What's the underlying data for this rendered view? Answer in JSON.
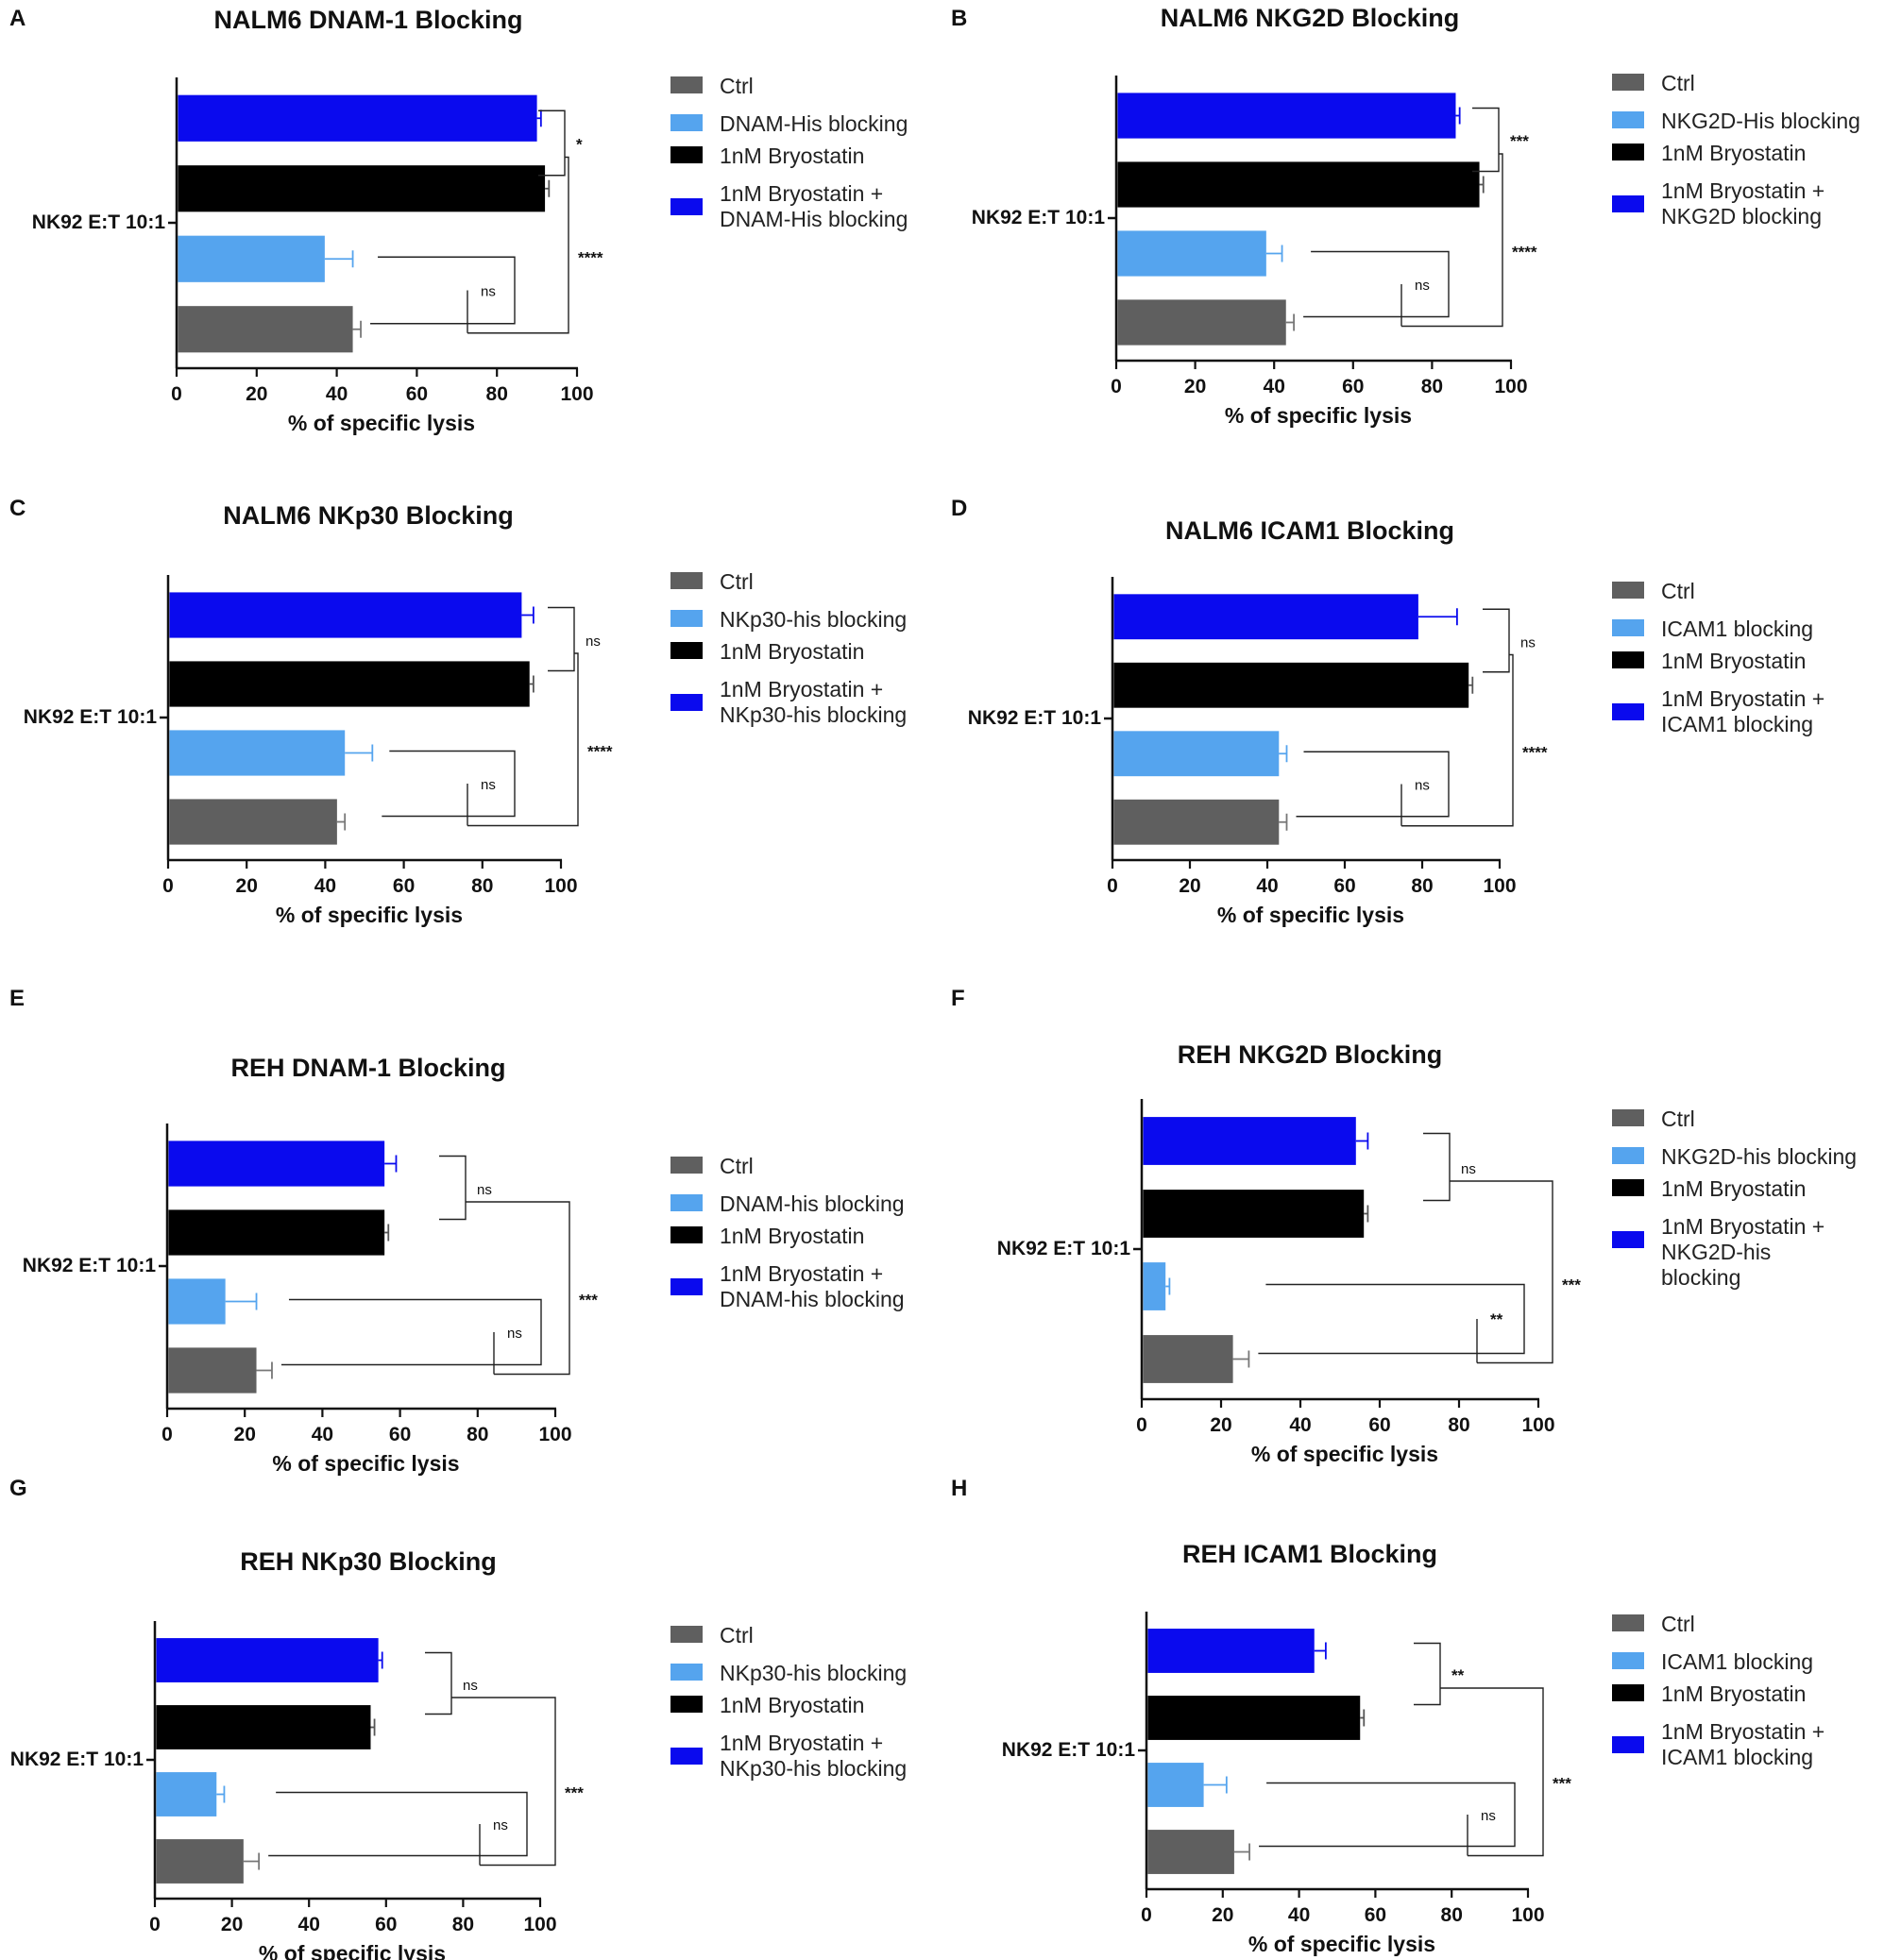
{
  "figure": {
    "colors": {
      "ctrl": "#5f5f5f",
      "blocking": "#55a4ee",
      "bryostatin": "#000000",
      "combo": "#0a0aee",
      "axis": "#111111"
    },
    "legend_colors": [
      "#5f5f5f",
      "#55a4ee",
      "#000000",
      "#0a0aee"
    ]
  },
  "chart_data": [
    {
      "panel": "A",
      "type": "bar",
      "orientation": "horizontal",
      "title": "NALM6 DNAM-1 Blocking",
      "row_label": "NK92 E:T 10:1",
      "xlabel": "% of specific lysis",
      "xlim": [
        0,
        100
      ],
      "xticks": [
        "0",
        "20",
        "40",
        "60",
        "80",
        "100"
      ],
      "legend": [
        "Ctrl",
        "DNAM-His blocking",
        "1nM Bryostatin",
        "1nM Bryostatin +\nDNAM-His blocking"
      ],
      "series": [
        {
          "name": "1nM Bryostatin + DNAM-His blocking",
          "value": 90,
          "error": 1
        },
        {
          "name": "1nM Bryostatin",
          "value": 92,
          "error": 1
        },
        {
          "name": "DNAM-His blocking",
          "value": 37,
          "error": 7
        },
        {
          "name": "Ctrl",
          "value": 44,
          "error": 2
        }
      ],
      "significance": [
        {
          "between": [
            "1nM Bryostatin + DNAM-His blocking",
            "1nM Bryostatin"
          ],
          "label": "*"
        },
        {
          "between": [
            "DNAM-His blocking",
            "Ctrl"
          ],
          "label": "ns"
        },
        {
          "between": [
            "1nM Bryostatin",
            "Ctrl"
          ],
          "label": "****"
        }
      ]
    },
    {
      "panel": "B",
      "type": "bar",
      "orientation": "horizontal",
      "title": "NALM6 NKG2D Blocking",
      "row_label": "NK92 E:T 10:1",
      "xlabel": "% of specific lysis",
      "xlim": [
        0,
        100
      ],
      "xticks": [
        "0",
        "20",
        "40",
        "60",
        "80",
        "100"
      ],
      "legend": [
        "Ctrl",
        "NKG2D-His blocking",
        "1nM Bryostatin",
        "1nM Bryostatin +\nNKG2D blocking"
      ],
      "series": [
        {
          "name": "1nM Bryostatin + NKG2D blocking",
          "value": 86,
          "error": 1
        },
        {
          "name": "1nM Bryostatin",
          "value": 92,
          "error": 1
        },
        {
          "name": "NKG2D-His blocking",
          "value": 38,
          "error": 4
        },
        {
          "name": "Ctrl",
          "value": 43,
          "error": 2
        }
      ],
      "significance": [
        {
          "between": [
            "1nM Bryostatin + NKG2D blocking",
            "1nM Bryostatin"
          ],
          "label": "***"
        },
        {
          "between": [
            "NKG2D-His blocking",
            "Ctrl"
          ],
          "label": "ns"
        },
        {
          "between": [
            "1nM Bryostatin",
            "Ctrl"
          ],
          "label": "****"
        }
      ]
    },
    {
      "panel": "C",
      "type": "bar",
      "orientation": "horizontal",
      "title": "NALM6 NKp30 Blocking",
      "row_label": "NK92 E:T 10:1",
      "xlabel": "% of specific lysis",
      "xlim": [
        0,
        100
      ],
      "xticks": [
        "0",
        "20",
        "40",
        "60",
        "80",
        "100"
      ],
      "legend": [
        "Ctrl",
        "NKp30-his blocking",
        "1nM Bryostatin",
        "1nM Bryostatin +\nNKp30-his blocking"
      ],
      "series": [
        {
          "name": "1nM Bryostatin + NKp30-his blocking",
          "value": 90,
          "error": 3
        },
        {
          "name": "1nM Bryostatin",
          "value": 92,
          "error": 1
        },
        {
          "name": "NKp30-his blocking",
          "value": 45,
          "error": 7
        },
        {
          "name": "Ctrl",
          "value": 43,
          "error": 2
        }
      ],
      "significance": [
        {
          "between": [
            "1nM Bryostatin + NKp30-his blocking",
            "1nM Bryostatin"
          ],
          "label": "ns"
        },
        {
          "between": [
            "NKp30-his blocking",
            "Ctrl"
          ],
          "label": "ns"
        },
        {
          "between": [
            "1nM Bryostatin",
            "Ctrl"
          ],
          "label": "****"
        }
      ]
    },
    {
      "panel": "D",
      "type": "bar",
      "orientation": "horizontal",
      "title": "NALM6 ICAM1 Blocking",
      "row_label": "NK92 E:T 10:1",
      "xlabel": "% of specific lysis",
      "xlim": [
        0,
        100
      ],
      "xticks": [
        "0",
        "20",
        "40",
        "60",
        "80",
        "100"
      ],
      "legend": [
        "Ctrl",
        "ICAM1 blocking",
        "1nM Bryostatin",
        "1nM Bryostatin +\nICAM1 blocking"
      ],
      "series": [
        {
          "name": "1nM Bryostatin + ICAM1 blocking",
          "value": 79,
          "error": 10
        },
        {
          "name": "1nM Bryostatin",
          "value": 92,
          "error": 1
        },
        {
          "name": "ICAM1 blocking",
          "value": 43,
          "error": 2
        },
        {
          "name": "Ctrl",
          "value": 43,
          "error": 2
        }
      ],
      "significance": [
        {
          "between": [
            "1nM Bryostatin + ICAM1 blocking",
            "1nM Bryostatin"
          ],
          "label": "ns"
        },
        {
          "between": [
            "ICAM1 blocking",
            "Ctrl"
          ],
          "label": "ns"
        },
        {
          "between": [
            "1nM Bryostatin",
            "Ctrl"
          ],
          "label": "****"
        }
      ]
    },
    {
      "panel": "E",
      "type": "bar",
      "orientation": "horizontal",
      "title": "REH DNAM-1 Blocking",
      "row_label": "NK92 E:T 10:1",
      "xlabel": "% of specific lysis",
      "xlim": [
        0,
        100
      ],
      "xticks": [
        "0",
        "20",
        "40",
        "60",
        "80",
        "100"
      ],
      "legend": [
        "Ctrl",
        "DNAM-his blocking",
        "1nM Bryostatin",
        "1nM Bryostatin +\nDNAM-his blocking"
      ],
      "series": [
        {
          "name": "1nM Bryostatin + DNAM-his blocking",
          "value": 56,
          "error": 3
        },
        {
          "name": "1nM Bryostatin",
          "value": 56,
          "error": 1
        },
        {
          "name": "DNAM-his blocking",
          "value": 15,
          "error": 8
        },
        {
          "name": "Ctrl",
          "value": 23,
          "error": 4
        }
      ],
      "significance": [
        {
          "between": [
            "1nM Bryostatin + DNAM-his blocking",
            "1nM Bryostatin"
          ],
          "label": "ns"
        },
        {
          "between": [
            "DNAM-his blocking",
            "Ctrl"
          ],
          "label": "ns"
        },
        {
          "between": [
            "1nM Bryostatin",
            "Ctrl"
          ],
          "label": "***"
        }
      ]
    },
    {
      "panel": "F",
      "type": "bar",
      "orientation": "horizontal",
      "title": "REH NKG2D Blocking",
      "row_label": "NK92 E:T 10:1",
      "xlabel": "% of specific lysis",
      "xlim": [
        0,
        100
      ],
      "xticks": [
        "0",
        "20",
        "40",
        "60",
        "80",
        "100"
      ],
      "legend": [
        "Ctrl",
        "NKG2D-his blocking",
        "1nM Bryostatin",
        "1nM Bryostatin +\nNKG2D-his\nblocking"
      ],
      "series": [
        {
          "name": "1nM Bryostatin + NKG2D-his blocking",
          "value": 54,
          "error": 3
        },
        {
          "name": "1nM Bryostatin",
          "value": 56,
          "error": 1
        },
        {
          "name": "NKG2D-his blocking",
          "value": 6,
          "error": 1
        },
        {
          "name": "Ctrl",
          "value": 23,
          "error": 4
        }
      ],
      "significance": [
        {
          "between": [
            "1nM Bryostatin + NKG2D-his blocking",
            "1nM Bryostatin"
          ],
          "label": "ns"
        },
        {
          "between": [
            "NKG2D-his blocking",
            "Ctrl"
          ],
          "label": "**"
        },
        {
          "between": [
            "1nM Bryostatin",
            "Ctrl"
          ],
          "label": "***"
        }
      ]
    },
    {
      "panel": "G",
      "type": "bar",
      "orientation": "horizontal",
      "title": "REH NKp30 Blocking",
      "row_label": "NK92 E:T 10:1",
      "xlabel": "% of specific lysis",
      "xlim": [
        0,
        100
      ],
      "xticks": [
        "0",
        "20",
        "40",
        "60",
        "80",
        "100"
      ],
      "legend": [
        "Ctrl",
        "NKp30-his blocking",
        "1nM Bryostatin",
        "1nM Bryostatin +\nNKp30-his blocking"
      ],
      "series": [
        {
          "name": "1nM Bryostatin + NKp30-his blocking",
          "value": 58,
          "error": 1
        },
        {
          "name": "1nM Bryostatin",
          "value": 56,
          "error": 1
        },
        {
          "name": "NKp30-his blocking",
          "value": 16,
          "error": 2
        },
        {
          "name": "Ctrl",
          "value": 23,
          "error": 4
        }
      ],
      "significance": [
        {
          "between": [
            "1nM Bryostatin + NKp30-his blocking",
            "1nM Bryostatin"
          ],
          "label": "ns"
        },
        {
          "between": [
            "NKp30-his blocking",
            "Ctrl"
          ],
          "label": "ns"
        },
        {
          "between": [
            "1nM Bryostatin",
            "Ctrl"
          ],
          "label": "***"
        }
      ]
    },
    {
      "panel": "H",
      "type": "bar",
      "orientation": "horizontal",
      "title": "REH ICAM1 Blocking",
      "row_label": "NK92 E:T 10:1",
      "xlabel": "% of specific lysis",
      "xlim": [
        0,
        100
      ],
      "xticks": [
        "0",
        "20",
        "40",
        "60",
        "80",
        "100"
      ],
      "legend": [
        "Ctrl",
        "ICAM1 blocking",
        "1nM Bryostatin",
        "1nM Bryostatin +\nICAM1 blocking"
      ],
      "series": [
        {
          "name": "1nM Bryostatin + ICAM1 blocking",
          "value": 44,
          "error": 3
        },
        {
          "name": "1nM Bryostatin",
          "value": 56,
          "error": 1
        },
        {
          "name": "ICAM1 blocking",
          "value": 15,
          "error": 6
        },
        {
          "name": "Ctrl",
          "value": 23,
          "error": 4
        }
      ],
      "significance": [
        {
          "between": [
            "1nM Bryostatin + ICAM1 blocking",
            "1nM Bryostatin"
          ],
          "label": "**"
        },
        {
          "between": [
            "ICAM1 blocking",
            "Ctrl"
          ],
          "label": "ns"
        },
        {
          "between": [
            "1nM Bryostatin",
            "Ctrl"
          ],
          "label": "***"
        }
      ]
    }
  ]
}
